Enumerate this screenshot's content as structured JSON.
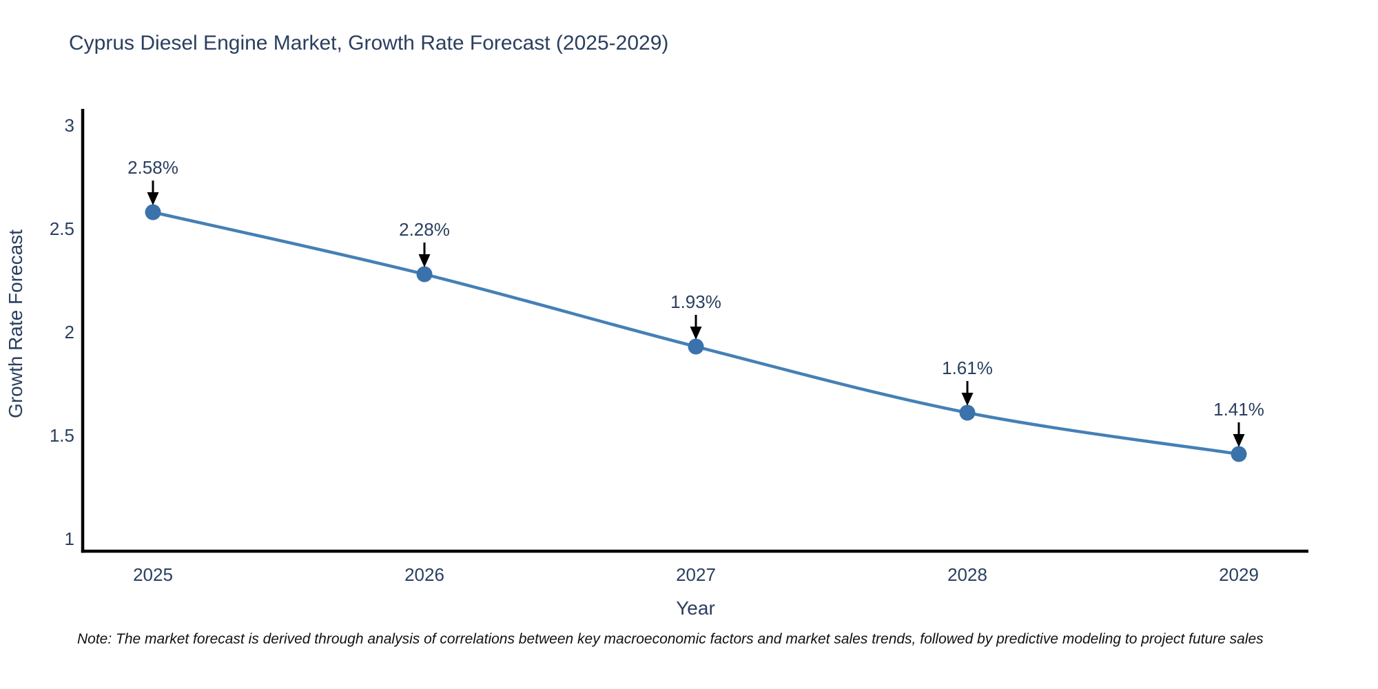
{
  "page": {
    "title": "Cyprus Diesel Engine Market, Growth Rate Forecast (2025-2029)",
    "note": "Note: The market forecast is derived through analysis of correlations between key macroeconomic factors and market sales trends, followed by predictive modeling to project future sales"
  },
  "chart_data": {
    "type": "line",
    "title": "Cyprus Diesel Engine Market, Growth Rate Forecast (2025-2029)",
    "xlabel": "Year",
    "ylabel": "Growth Rate Forecast",
    "x": [
      "2025",
      "2026",
      "2027",
      "2028",
      "2029"
    ],
    "y": [
      2.58,
      2.28,
      1.93,
      1.61,
      1.41
    ],
    "point_labels": [
      "2.58%",
      "2.28%",
      "1.93%",
      "1.61%",
      "1.41%"
    ],
    "ytick_values": [
      1,
      1.5,
      2,
      2.5,
      3
    ],
    "ytick_labels": [
      "1",
      "1.5",
      "2",
      "2.5",
      "3"
    ],
    "ylim": [
      0.94,
      3.08
    ],
    "grid": false,
    "legend": "none",
    "marker": "circle",
    "annotation_arrows": true,
    "colors": {
      "line": "#4580b6",
      "marker": "#3a72ab",
      "axis_line": "#000000",
      "text": "#2a3f5f",
      "arrow": "#000000",
      "note_text": "#111111",
      "background": "#ffffff"
    }
  }
}
